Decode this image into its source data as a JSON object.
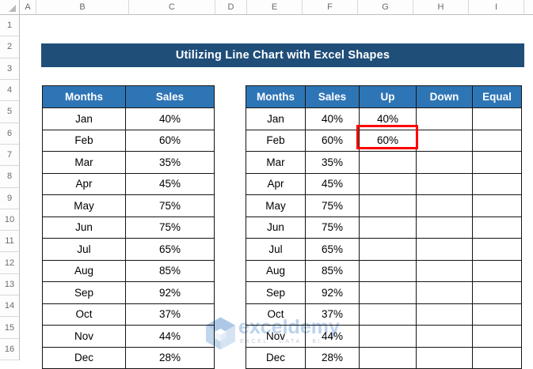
{
  "banner": {
    "text": "Utilizing Line Chart with Excel Shapes",
    "bg_color": "#1F4E79",
    "text_color": "#FFFFFF"
  },
  "spreadsheet": {
    "column_headers": [
      "A",
      "B",
      "C",
      "D",
      "E",
      "F",
      "G",
      "H",
      "I"
    ],
    "row_headers": [
      "1",
      "2",
      "3",
      "4",
      "5",
      "6",
      "7",
      "8",
      "9",
      "10",
      "11",
      "12",
      "13",
      "14",
      "15",
      "16"
    ]
  },
  "left_table": {
    "headers": [
      "Months",
      "Sales"
    ],
    "rows": [
      [
        "Jan",
        "40%"
      ],
      [
        "Feb",
        "60%"
      ],
      [
        "Mar",
        "35%"
      ],
      [
        "Apr",
        "45%"
      ],
      [
        "May",
        "75%"
      ],
      [
        "Jun",
        "75%"
      ],
      [
        "Jul",
        "65%"
      ],
      [
        "Aug",
        "85%"
      ],
      [
        "Sep",
        "92%"
      ],
      [
        "Oct",
        "37%"
      ],
      [
        "Nov",
        "44%"
      ],
      [
        "Dec",
        "28%"
      ]
    ]
  },
  "right_table": {
    "headers": [
      "Months",
      "Sales",
      "Up",
      "Down",
      "Equal"
    ],
    "rows": [
      [
        "Jan",
        "40%",
        "40%",
        "",
        ""
      ],
      [
        "Feb",
        "60%",
        "60%",
        "",
        ""
      ],
      [
        "Mar",
        "35%",
        "",
        "",
        ""
      ],
      [
        "Apr",
        "45%",
        "",
        "",
        ""
      ],
      [
        "May",
        "75%",
        "",
        "",
        ""
      ],
      [
        "Jun",
        "75%",
        "",
        "",
        ""
      ],
      [
        "Jul",
        "65%",
        "",
        "",
        ""
      ],
      [
        "Aug",
        "85%",
        "",
        "",
        ""
      ],
      [
        "Sep",
        "92%",
        "",
        "",
        ""
      ],
      [
        "Oct",
        "37%",
        "",
        "",
        ""
      ],
      [
        "Nov",
        "44%",
        "",
        "",
        ""
      ],
      [
        "Dec",
        "28%",
        "",
        "",
        ""
      ]
    ]
  },
  "highlight": {
    "cell": "G6",
    "value": "60%",
    "border_color": "#FF0000"
  },
  "watermark": {
    "brand": "exceldemy",
    "tagline": "EXCEL - DATA - BI",
    "color": "#AECBEA"
  },
  "colors": {
    "table_header_bg": "#2E75B6",
    "table_header_text": "#FFFFFF",
    "banner_bg": "#1F4E79",
    "table_border": "#141414",
    "chrome_text": "#6B6B6B"
  }
}
